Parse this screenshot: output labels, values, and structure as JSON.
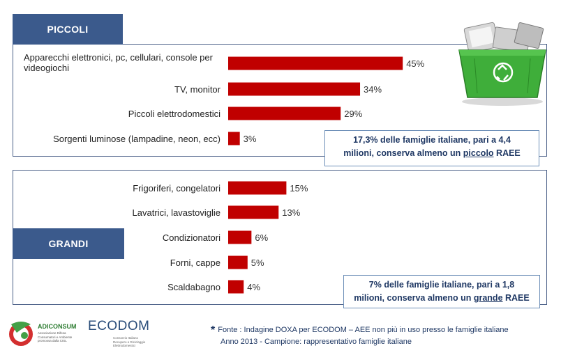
{
  "chart_data": [
    {
      "type": "bar",
      "orientation": "horizontal",
      "group_label": "PICCOLI",
      "categories": [
        "Apparecchi elettronici, pc, cellulari, console per videogiochi",
        "TV, monitor",
        "Piccoli elettrodomestici",
        "Sorgenti luminose (lampadine, neon, ecc)"
      ],
      "values": [
        45,
        34,
        29,
        3
      ],
      "value_labels": [
        "45%",
        "34%",
        "29%",
        "3%"
      ],
      "unit": "%",
      "xlim": [
        0,
        50
      ],
      "grid": false,
      "bar_color": "#c00000"
    },
    {
      "type": "bar",
      "orientation": "horizontal",
      "group_label": "GRANDI",
      "categories": [
        "Frigoriferi, congelatori",
        "Lavatrici, lavastoviglie",
        "Condizionatori",
        "Forni, cappe",
        "Scaldabagno"
      ],
      "values": [
        15,
        13,
        6,
        5,
        4
      ],
      "value_labels": [
        "15%",
        "13%",
        "6%",
        "5%",
        "4%"
      ],
      "unit": "%",
      "xlim": [
        0,
        50
      ],
      "grid": false,
      "bar_color": "#c00000"
    }
  ],
  "callouts": {
    "small": {
      "line1": "17,3% delle famiglie italiane, pari a 4,4",
      "line2_pre": "milioni, conserva almeno un ",
      "line2_u": "piccolo",
      "line2_post": " RAEE"
    },
    "large": {
      "line1": "7% delle famiglie italiane, pari a 1,8",
      "line2_pre": "milioni, conserva almeno un ",
      "line2_u": "grande",
      "line2_post": " RAEE"
    }
  },
  "footer": {
    "star": "*",
    "line1": "Fonte : Indagine DOXA per ECODOM – AEE non più in uso presso le famiglie italiane",
    "line2": "Anno 2013 - Campione: rappresentativo famiglie italiane"
  },
  "logos": {
    "adiconsum": "ADICONSUM",
    "adiconsum_sub": "Associazione Difesa Consumatori e Ambiente promossa dalla CISL",
    "ecodom": "ECODOM",
    "ecodom_sub": "Consorzio Italiano Recupero e Riciclaggio Elettrodomestici"
  },
  "colors": {
    "bar": "#c00000",
    "tab": "#3b5a8c",
    "text_dark": "#1f3864"
  },
  "icons": {
    "bin": "recycling-bin-icon"
  }
}
